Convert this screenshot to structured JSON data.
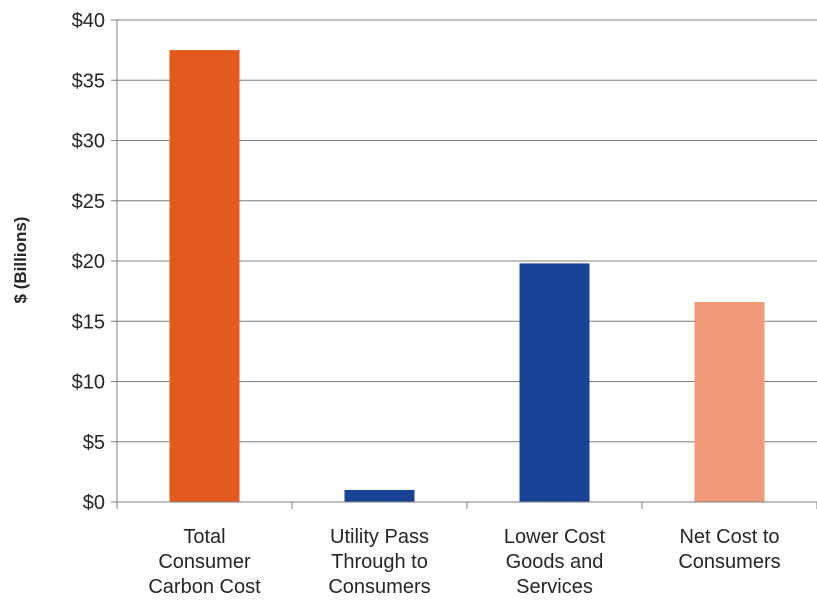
{
  "chart_data": {
    "type": "bar",
    "ylabel": "$ (Billions)",
    "ylim": [
      0,
      40
    ],
    "ytick_step": 5,
    "ytick_prefix": "$",
    "grid": true,
    "legend": "none",
    "categories": [
      [
        "Total",
        "Consumer",
        "Carbon Cost"
      ],
      [
        "Utility Pass",
        "Through to",
        "Consumers"
      ],
      [
        "Lower Cost",
        "Goods and",
        "Services"
      ],
      [
        "Net Cost to",
        "Consumers"
      ]
    ],
    "values": [
      37.5,
      1.0,
      19.8,
      16.6
    ],
    "colors": [
      "#e35a1c",
      "#1a4396",
      "#1a4396",
      "#f09a78"
    ]
  }
}
